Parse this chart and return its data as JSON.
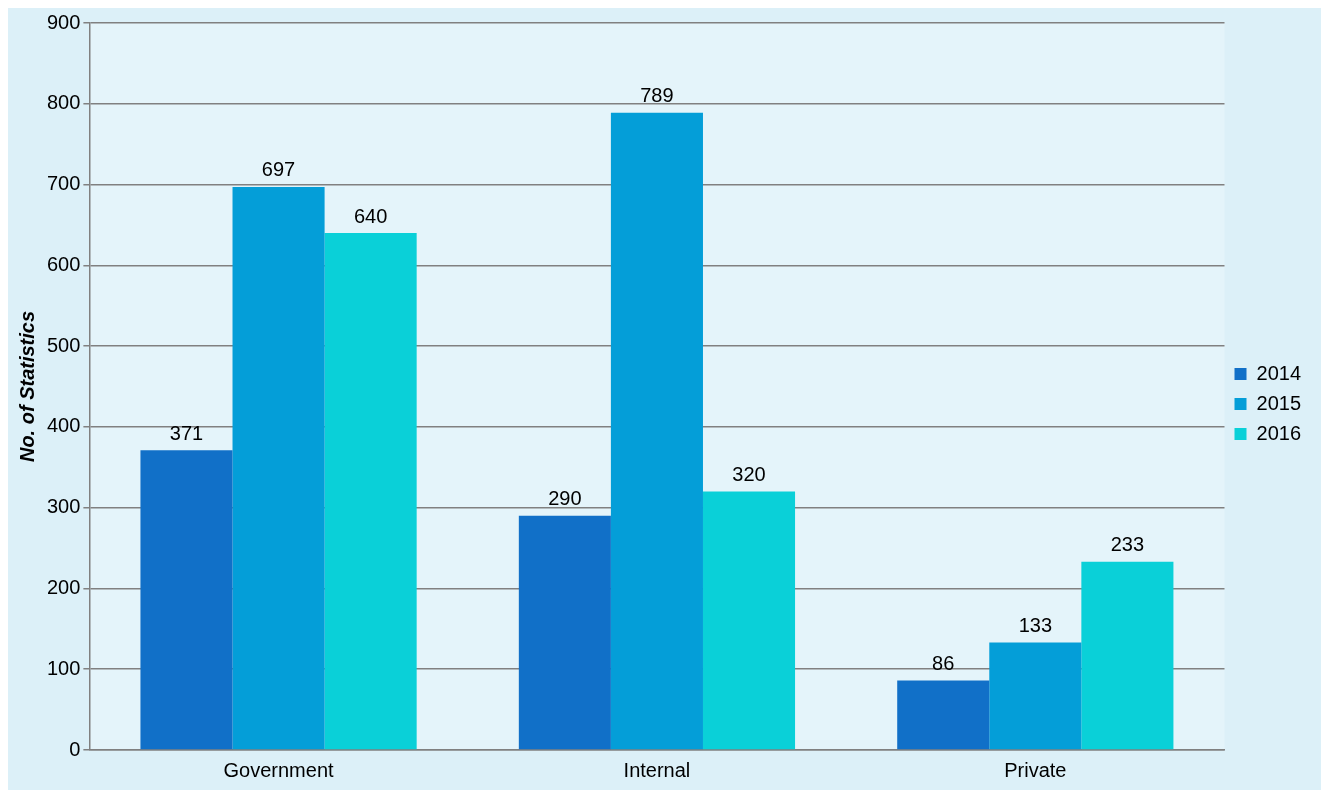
{
  "chart_data": {
    "type": "bar",
    "ylabel": "No. of Statistics",
    "categories": [
      "Government",
      "Internal",
      "Private"
    ],
    "series": [
      {
        "name": "2014",
        "color": "#1170c8",
        "values": [
          371,
          290,
          86
        ]
      },
      {
        "name": "2015",
        "color": "#049ed8",
        "values": [
          697,
          789,
          133
        ]
      },
      {
        "name": "2016",
        "color": "#0ad0d8",
        "values": [
          640,
          320,
          233
        ]
      }
    ],
    "ylim": [
      0,
      900
    ],
    "yticks": [
      0,
      100,
      200,
      300,
      400,
      500,
      600,
      700,
      800,
      900
    ],
    "grid": "y",
    "legend": "right",
    "data_labels": true
  }
}
